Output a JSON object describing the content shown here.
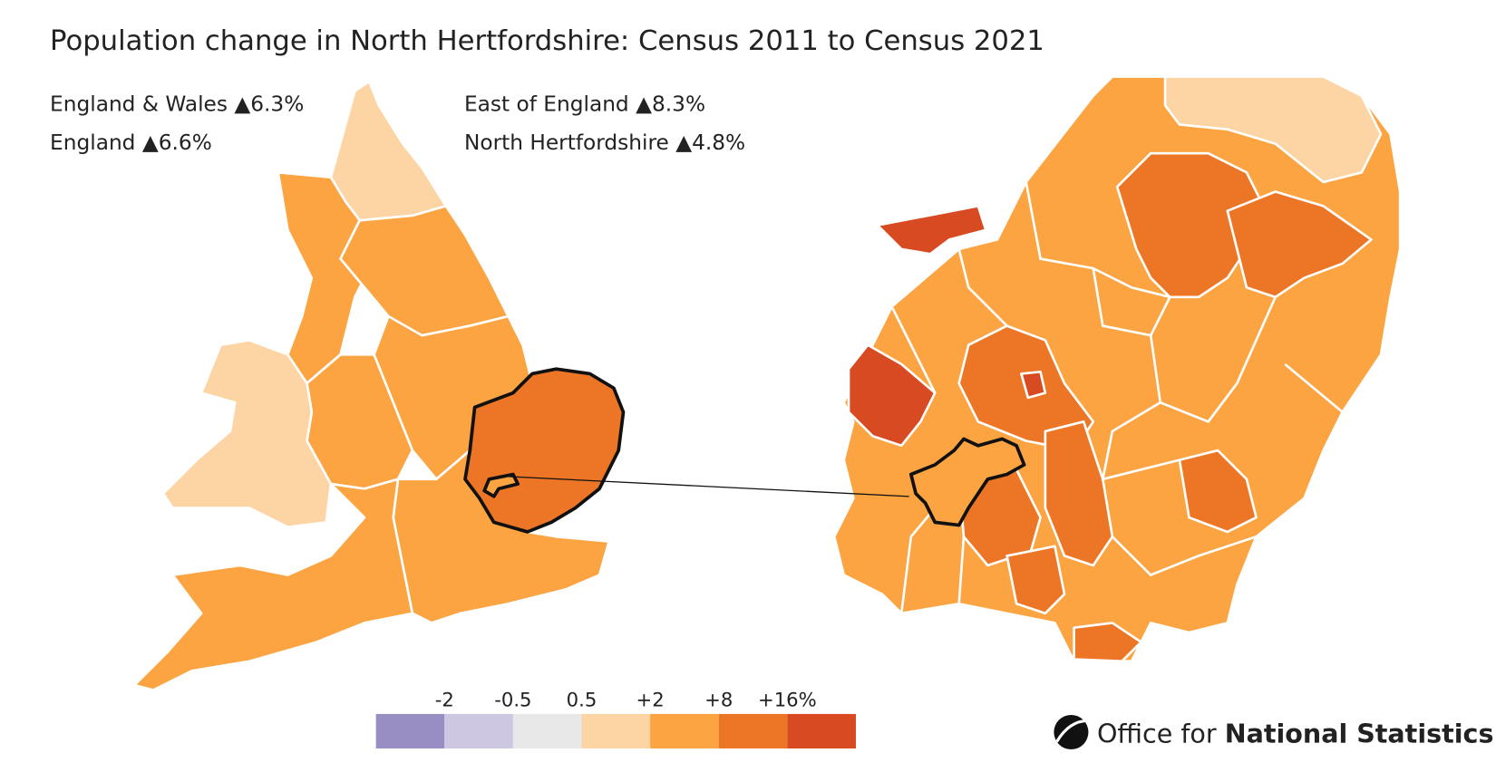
{
  "header": {
    "title": "Population change in North Hertfordshire: Census 2011 to Census 2021"
  },
  "stats": [
    {
      "area": "England & Wales",
      "change": "▲6.3%"
    },
    {
      "area": "England",
      "change": "▲6.6%"
    },
    {
      "area": "East of England",
      "change": "▲8.3%"
    },
    {
      "area": "North Hertfordshire",
      "change": "▲4.8%"
    }
  ],
  "legend": {
    "ticks": [
      "-2",
      "-0.5",
      "0.5",
      "+2",
      "+8",
      "+16%"
    ],
    "colors": [
      "#998ec3",
      "#cdc7e1",
      "#e8e8e8",
      "#fdd4a3",
      "#fba441",
      "#ec7625",
      "#d84a21"
    ]
  },
  "footer": {
    "logo_light": "Office for",
    "logo_bold": "National Statistics"
  }
}
